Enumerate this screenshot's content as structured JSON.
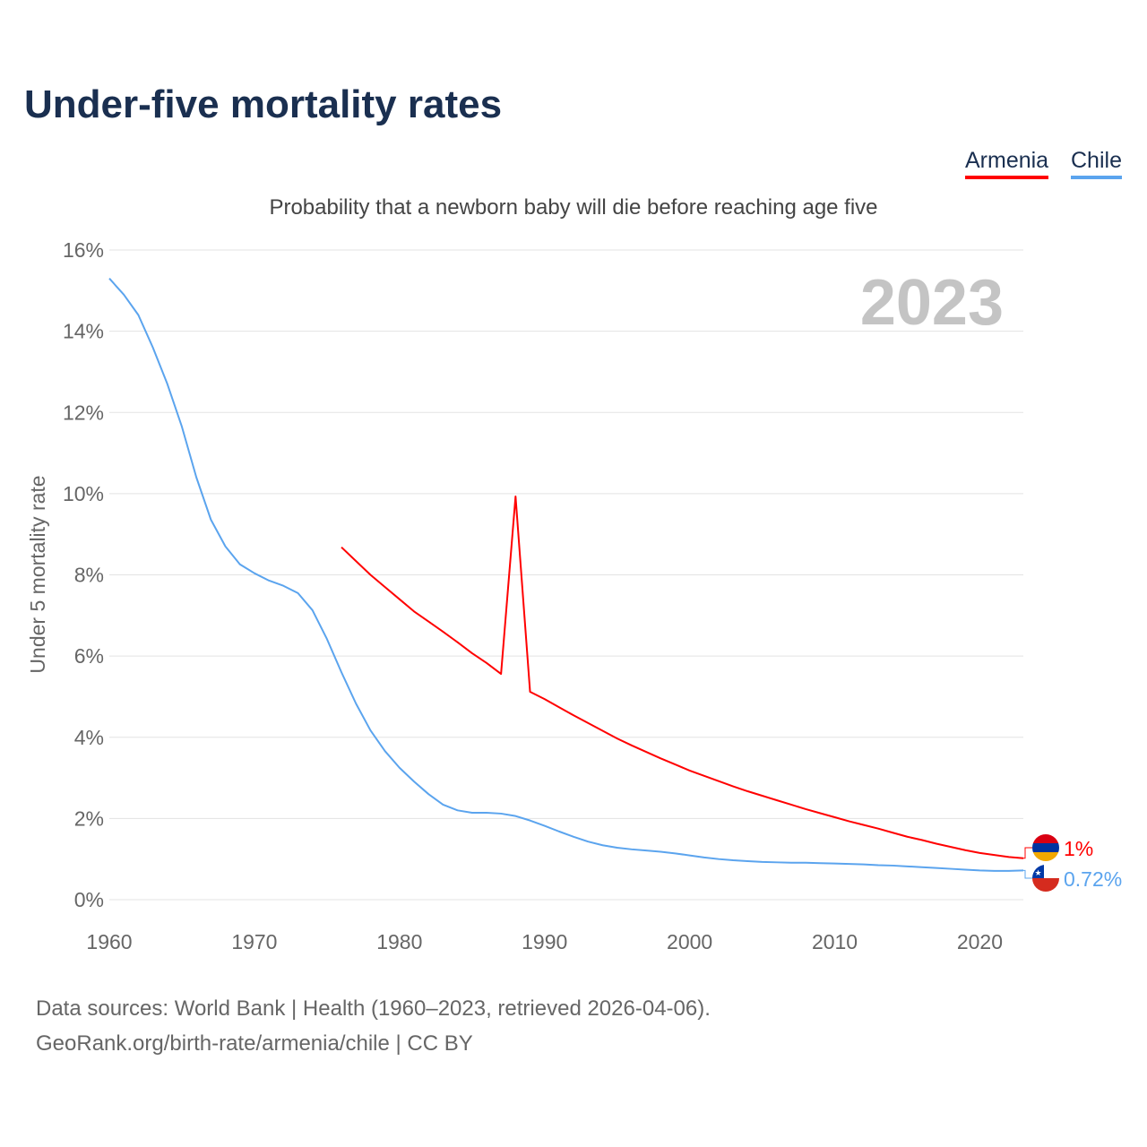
{
  "title": "Under-five mortality rates",
  "subtitle": "Probability that a newborn baby will die before reaching age five",
  "year_label": "2023",
  "footer": {
    "line1": "Data sources: World Bank | Health (1960–2023, retrieved 2026-04-06).",
    "line2": "GeoRank.org/birth-rate/armenia/chile | CC BY"
  },
  "chart_data": {
    "type": "line",
    "title": "Under-five mortality rates",
    "ylabel": "Under 5 mortality rate",
    "xlabel": "",
    "xlim": [
      1960,
      2023
    ],
    "ylim": [
      0,
      16
    ],
    "xticks": [
      "1960",
      "1970",
      "1980",
      "1990",
      "2000",
      "2010",
      "2020"
    ],
    "yticks": [
      "0%",
      "2%",
      "4%",
      "6%",
      "8%",
      "10%",
      "12%",
      "14%",
      "16%"
    ],
    "legend_position": "top-right",
    "series": [
      {
        "name": "Armenia",
        "color": "#ff0000",
        "end_label": "1%",
        "flag": "armenia-flag-icon",
        "x": [
          1976,
          1977,
          1978,
          1979,
          1980,
          1981,
          1982,
          1983,
          1984,
          1985,
          1986,
          1987,
          1988,
          1989,
          1990,
          1991,
          1992,
          1993,
          1994,
          1995,
          1996,
          1997,
          1998,
          1999,
          2000,
          2001,
          2002,
          2003,
          2004,
          2005,
          2006,
          2007,
          2008,
          2009,
          2010,
          2011,
          2012,
          2013,
          2014,
          2015,
          2016,
          2017,
          2018,
          2019,
          2020,
          2021,
          2022,
          2023
        ],
        "y": [
          8.68,
          8.34,
          8.0,
          7.7,
          7.4,
          7.1,
          6.85,
          6.6,
          6.34,
          6.07,
          5.83,
          5.56,
          9.93,
          5.12,
          4.94,
          4.74,
          4.54,
          4.35,
          4.16,
          3.97,
          3.8,
          3.64,
          3.48,
          3.33,
          3.18,
          3.05,
          2.92,
          2.79,
          2.67,
          2.56,
          2.45,
          2.34,
          2.23,
          2.13,
          2.03,
          1.93,
          1.84,
          1.75,
          1.65,
          1.55,
          1.47,
          1.38,
          1.3,
          1.22,
          1.15,
          1.1,
          1.05,
          1.02
        ]
      },
      {
        "name": "Chile",
        "color": "#5ba4ee",
        "end_label": "0.72%",
        "flag": "chile-flag-icon",
        "x": [
          1960,
          1961,
          1962,
          1963,
          1964,
          1965,
          1966,
          1967,
          1968,
          1969,
          1970,
          1971,
          1972,
          1973,
          1974,
          1975,
          1976,
          1977,
          1978,
          1979,
          1980,
          1981,
          1982,
          1983,
          1984,
          1985,
          1986,
          1987,
          1988,
          1989,
          1990,
          1991,
          1992,
          1993,
          1994,
          1995,
          1996,
          1997,
          1998,
          1999,
          2000,
          2001,
          2002,
          2003,
          2004,
          2005,
          2006,
          2007,
          2008,
          2009,
          2010,
          2011,
          2012,
          2013,
          2014,
          2015,
          2016,
          2017,
          2018,
          2019,
          2020,
          2021,
          2022,
          2023
        ],
        "y": [
          15.3,
          14.9,
          14.4,
          13.6,
          12.7,
          11.65,
          10.4,
          9.36,
          8.7,
          8.26,
          8.04,
          7.86,
          7.73,
          7.55,
          7.13,
          6.42,
          5.6,
          4.83,
          4.17,
          3.66,
          3.25,
          2.91,
          2.6,
          2.34,
          2.2,
          2.14,
          2.14,
          2.12,
          2.06,
          1.95,
          1.82,
          1.68,
          1.55,
          1.43,
          1.34,
          1.28,
          1.24,
          1.21,
          1.18,
          1.14,
          1.09,
          1.04,
          1.0,
          0.97,
          0.95,
          0.93,
          0.92,
          0.91,
          0.91,
          0.9,
          0.89,
          0.88,
          0.87,
          0.85,
          0.84,
          0.82,
          0.8,
          0.78,
          0.76,
          0.74,
          0.72,
          0.71,
          0.71,
          0.72
        ]
      }
    ]
  }
}
